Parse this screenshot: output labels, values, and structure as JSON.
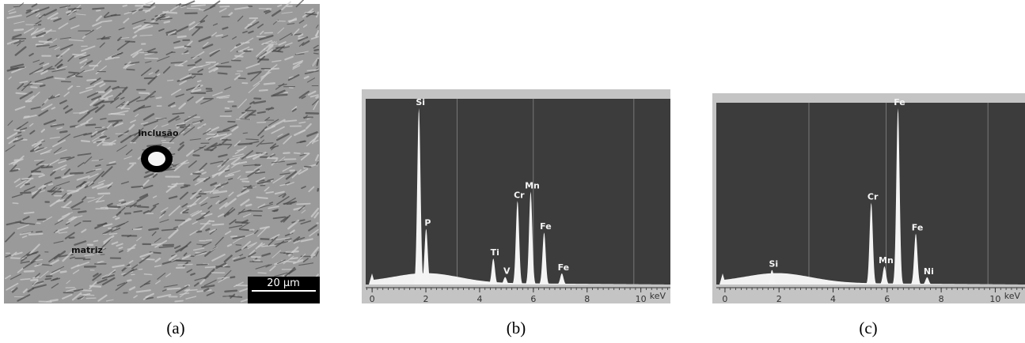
{
  "panels": [
    {
      "caption": "(a)",
      "annotations": [
        "inclusão",
        "matriz"
      ],
      "scale_bar": "20 µm"
    },
    {
      "caption": "(b)",
      "spectrum": {
        "xlim": [
          -0.24,
          11.1
        ],
        "ylim": [
          0,
          100
        ],
        "xticks": [
          0,
          2,
          4,
          6,
          8,
          10
        ],
        "xlabel": "keV",
        "peaks": [
          {
            "label": "Si",
            "x": 1.74,
            "height": 95
          },
          {
            "label": "P",
            "x": 2.01,
            "height": 30
          },
          {
            "label": "Ti",
            "x": 4.51,
            "height": 14
          },
          {
            "label": "V",
            "x": 4.95,
            "height": 4
          },
          {
            "label": "Cr",
            "x": 5.41,
            "height": 45
          },
          {
            "label": "Mn",
            "x": 5.9,
            "height": 50
          },
          {
            "label": "Fe",
            "x": 6.4,
            "height": 28
          },
          {
            "label": "Fe",
            "x": 7.06,
            "height": 6
          }
        ]
      }
    },
    {
      "caption": "(c)",
      "spectrum": {
        "xlim": [
          -0.32,
          11.1
        ],
        "ylim": [
          0,
          100
        ],
        "xticks": [
          0,
          2,
          4,
          6,
          8,
          10
        ],
        "xlabel": "keV",
        "peaks": [
          {
            "label": "Si",
            "x": 1.74,
            "height": 8
          },
          {
            "label": "Cr",
            "x": 5.41,
            "height": 45
          },
          {
            "label": "Mn",
            "x": 5.9,
            "height": 10
          },
          {
            "label": "Fe",
            "x": 6.4,
            "height": 97
          },
          {
            "label": "Fe",
            "x": 7.06,
            "height": 28
          },
          {
            "label": "Ni",
            "x": 7.48,
            "height": 4
          }
        ]
      }
    }
  ]
}
